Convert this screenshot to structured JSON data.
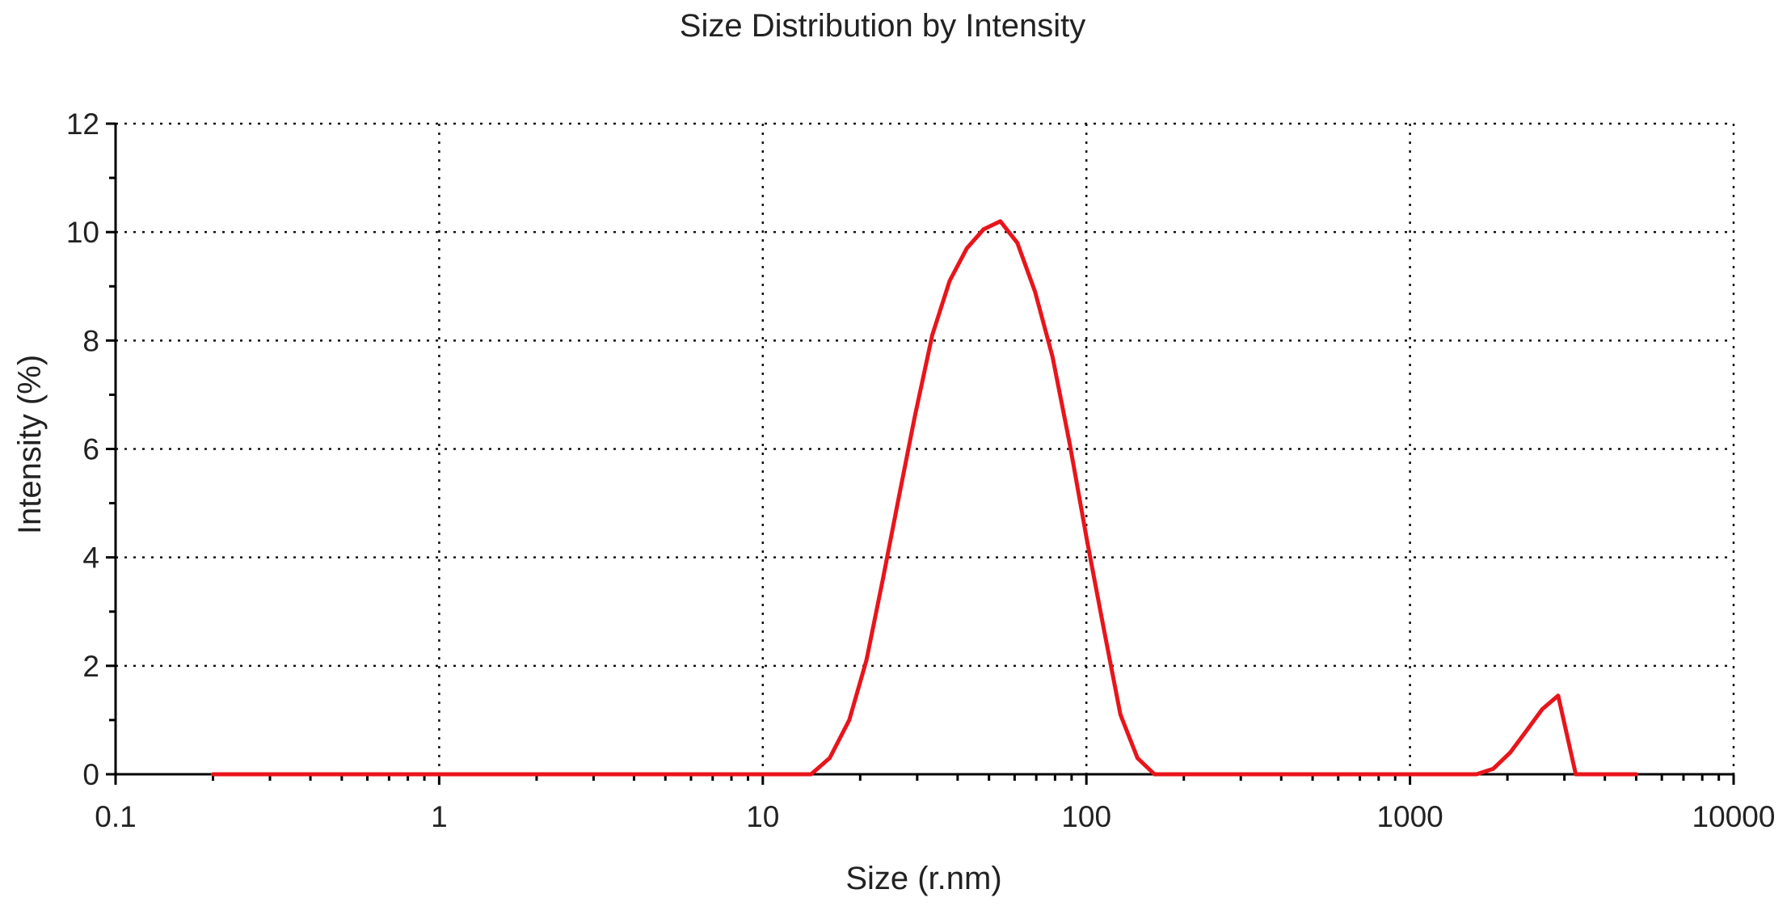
{
  "chart_data": {
    "type": "line",
    "title": "Size Distribution by Intensity",
    "xlabel": "Size (r.nm)",
    "ylabel": "Intensity (%)",
    "x_scale": "log",
    "xlim": [
      0.1,
      10000
    ],
    "ylim": [
      0,
      12
    ],
    "x_ticks": [
      0.1,
      1,
      10,
      100,
      1000,
      10000
    ],
    "x_tick_labels": [
      "0.1",
      "1",
      "10",
      "100",
      "1000",
      "10000"
    ],
    "y_ticks": [
      0,
      2,
      4,
      6,
      8,
      10,
      12
    ],
    "y_tick_labels": [
      "0",
      "2",
      "4",
      "6",
      "8",
      "10",
      "12"
    ],
    "grid": true,
    "legend": "none",
    "series": [
      {
        "color": "#e8151b",
        "x": [
          0.2,
          14.1,
          16.1,
          18.5,
          20.9,
          23.5,
          26.3,
          29.5,
          33.4,
          37.8,
          42.7,
          48.1,
          54.2,
          61.2,
          69.4,
          78.6,
          88.8,
          100.5,
          113.0,
          127.4,
          143.8,
          162.3,
          183.3,
          205.6,
          232.1,
          1606,
          1807,
          2039,
          2289,
          2562,
          2869,
          3252,
          5000
        ],
        "y": [
          0,
          0,
          0.3,
          1.0,
          2.1,
          3.6,
          5.1,
          6.6,
          8.1,
          9.1,
          9.7,
          10.05,
          10.2,
          9.8,
          8.9,
          7.7,
          6.1,
          4.3,
          2.7,
          1.1,
          0.3,
          0,
          0,
          0,
          0,
          0,
          0.1,
          0.4,
          0.8,
          1.2,
          1.45,
          0,
          0
        ]
      }
    ]
  }
}
